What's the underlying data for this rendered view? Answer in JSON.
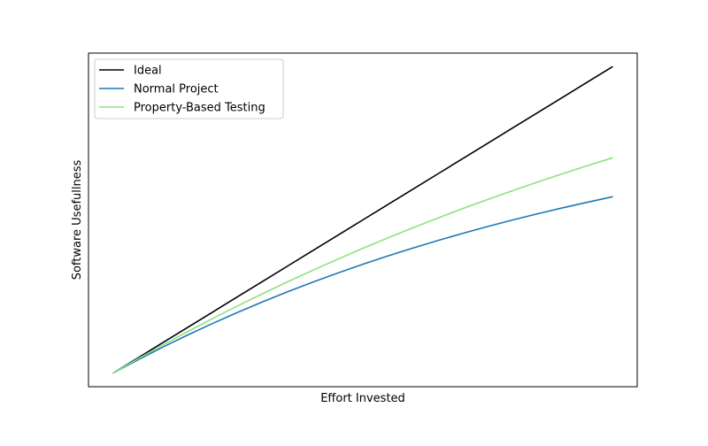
{
  "chart_data": {
    "type": "line",
    "title": "",
    "xlabel": "Effort Invested",
    "ylabel": "Software Usefullness",
    "xlim": [
      -0.05,
      1.05
    ],
    "ylim": [
      -0.045,
      1.045
    ],
    "grid": false,
    "legend_position": "top-left",
    "x": [
      0,
      0.05,
      0.1,
      0.15,
      0.2,
      0.25,
      0.3,
      0.35,
      0.4,
      0.45,
      0.5,
      0.55,
      0.6,
      0.65,
      0.7,
      0.75,
      0.8,
      0.85,
      0.9,
      0.95,
      1.0
    ],
    "series": [
      {
        "name": "Ideal",
        "color": "#000000",
        "values": [
          0,
          0.05,
          0.1,
          0.15,
          0.2,
          0.25,
          0.3,
          0.35,
          0.4,
          0.45,
          0.5,
          0.55,
          0.6,
          0.65,
          0.7,
          0.75,
          0.8,
          0.85,
          0.9,
          0.95,
          1.0
        ]
      },
      {
        "name": "Normal Project",
        "color": "#1f77b4",
        "values": [
          0,
          0.0436,
          0.0852,
          0.1248,
          0.1626,
          0.1986,
          0.233,
          0.2657,
          0.2969,
          0.3267,
          0.3551,
          0.3821,
          0.4079,
          0.4325,
          0.4559,
          0.4783,
          0.4996,
          0.5199,
          0.5393,
          0.5577,
          0.5754
        ]
      },
      {
        "name": "Property-Based Testing",
        "color": "#90e080",
        "values": [
          0,
          0.0469,
          0.0922,
          0.1361,
          0.1786,
          0.2198,
          0.2596,
          0.2983,
          0.3357,
          0.3719,
          0.407,
          0.441,
          0.4739,
          0.5058,
          0.5367,
          0.5666,
          0.5955,
          0.6236,
          0.6508,
          0.6771,
          0.7026
        ]
      }
    ]
  }
}
